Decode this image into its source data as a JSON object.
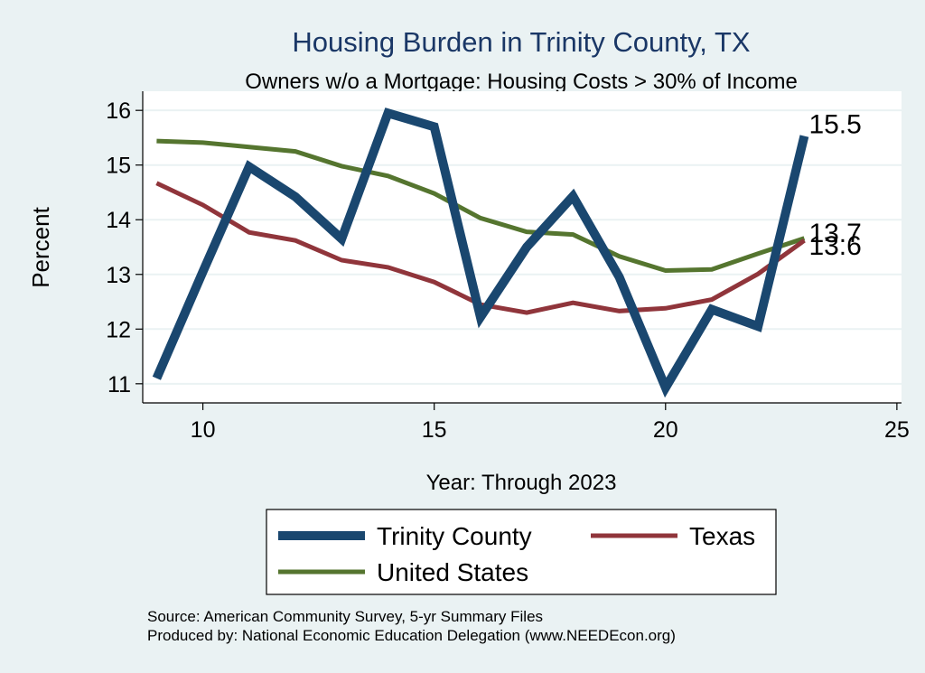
{
  "chart_data": {
    "type": "line",
    "title": "Housing Burden in Trinity County, TX",
    "subtitle": "Owners w/o a Mortgage: Housing Costs > 30% of Income",
    "xlabel": "Year: Through 2023",
    "ylabel": "Percent",
    "xlim": [
      8.7,
      25.1
    ],
    "ylim": [
      10.65,
      16.35
    ],
    "xticks": [
      10,
      15,
      20,
      25
    ],
    "yticks": [
      11,
      12,
      13,
      14,
      15,
      16
    ],
    "grid": true,
    "legend_position": "bottom",
    "x": [
      9,
      10,
      11,
      12,
      13,
      14,
      15,
      16,
      17,
      18,
      19,
      20,
      21,
      22,
      23
    ],
    "series": [
      {
        "name": "Trinity County",
        "color": "#1a476f",
        "values": [
          11.1,
          13.05,
          14.97,
          14.42,
          13.65,
          15.95,
          15.7,
          12.22,
          13.5,
          14.43,
          12.95,
          10.93,
          12.36,
          12.05,
          15.53
        ],
        "end_label": "15.5"
      },
      {
        "name": "Texas",
        "color": "#90353b",
        "values": [
          14.67,
          14.27,
          13.77,
          13.62,
          13.26,
          13.13,
          12.86,
          12.45,
          12.3,
          12.48,
          12.33,
          12.38,
          12.54,
          13.01,
          13.62
        ],
        "end_label": "13.6"
      },
      {
        "name": "United States",
        "color": "#55752f",
        "values": [
          15.44,
          15.41,
          15.33,
          15.25,
          14.98,
          14.8,
          14.48,
          14.03,
          13.78,
          13.73,
          13.33,
          13.07,
          13.09,
          13.38,
          13.66
        ],
        "end_label": "13.7"
      }
    ]
  },
  "notes": {
    "source": "Source: American Community Survey, 5-yr Summary Files",
    "producer": "Produced by: National Economic Education Delegation (www.NEEDEcon.org)"
  }
}
